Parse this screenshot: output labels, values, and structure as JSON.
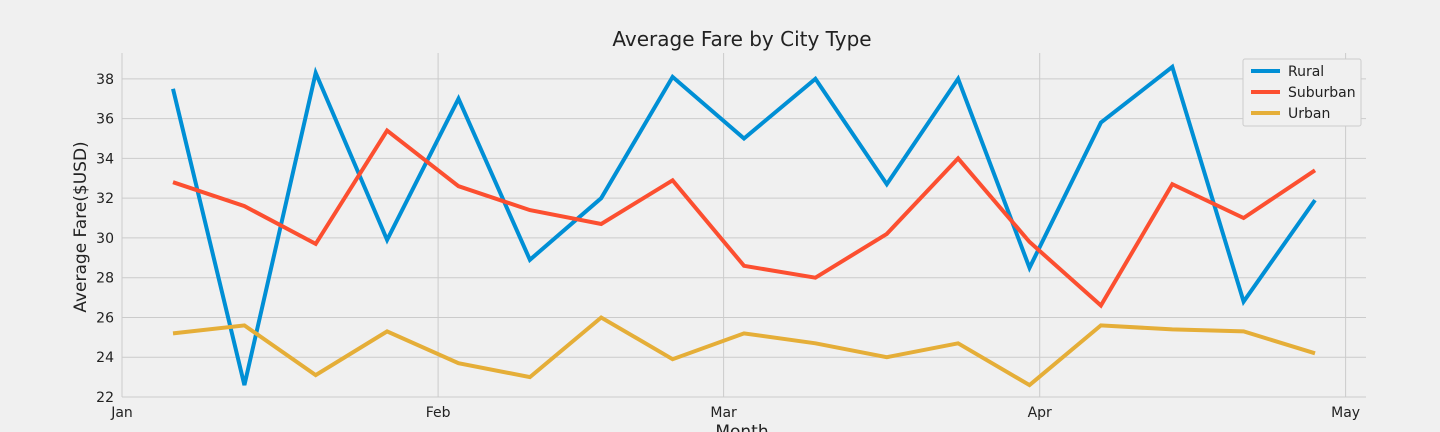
{
  "chart_data": {
    "type": "line",
    "title": "Average Fare by City Type",
    "xlabel": "Month",
    "ylabel": "Average Fare($USD)",
    "x": [
      "2019-01-06",
      "2019-01-13",
      "2019-01-20",
      "2019-01-27",
      "2019-02-03",
      "2019-02-10",
      "2019-02-17",
      "2019-02-24",
      "2019-03-03",
      "2019-03-10",
      "2019-03-17",
      "2019-03-24",
      "2019-03-31",
      "2019-04-07",
      "2019-04-14",
      "2019-04-21",
      "2019-04-28"
    ],
    "xlim": [
      "2019-01-01",
      "2019-05-03"
    ],
    "ylim": [
      22,
      39.3
    ],
    "x_ticks": [
      {
        "date": "2019-01-01",
        "label": "Jan"
      },
      {
        "date": "2019-02-01",
        "label": "Feb"
      },
      {
        "date": "2019-03-01",
        "label": "Mar"
      },
      {
        "date": "2019-04-01",
        "label": "Apr"
      },
      {
        "date": "2019-05-01",
        "label": "May"
      }
    ],
    "y_ticks": [
      22,
      24,
      26,
      28,
      30,
      32,
      34,
      36,
      38
    ],
    "grid": true,
    "legend_position": "top-right",
    "series": [
      {
        "name": "Rural",
        "color": "#008fd5",
        "values": [
          37.5,
          22.6,
          38.3,
          29.9,
          37.0,
          28.9,
          32.0,
          38.1,
          35.0,
          38.0,
          32.7,
          38.0,
          28.5,
          35.8,
          38.6,
          26.8,
          31.9
        ]
      },
      {
        "name": "Suburban",
        "color": "#fc4f30",
        "values": [
          32.8,
          31.6,
          29.7,
          35.4,
          32.6,
          31.4,
          30.7,
          32.9,
          28.6,
          28.0,
          30.2,
          34.0,
          29.8,
          26.6,
          32.7,
          31.0,
          33.4
        ]
      },
      {
        "name": "Urban",
        "color": "#e5ae38",
        "values": [
          25.2,
          25.6,
          23.1,
          25.3,
          23.7,
          23.0,
          26.0,
          23.9,
          25.2,
          24.7,
          24.0,
          24.7,
          22.6,
          25.6,
          25.4,
          25.3,
          24.2
        ]
      }
    ]
  }
}
